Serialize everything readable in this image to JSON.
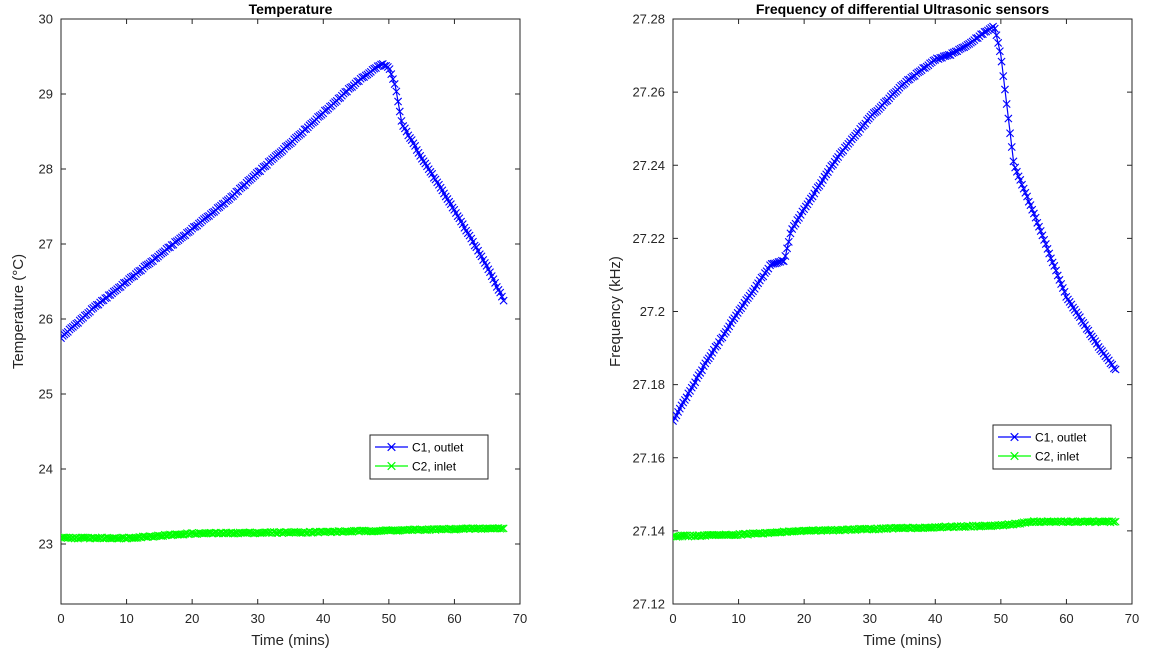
{
  "chart_data": [
    {
      "type": "line",
      "title": "Temperature",
      "xlabel": "Time (mins)",
      "ylabel": "Temperature (°C)",
      "xlim": [
        0,
        70
      ],
      "ylim": [
        22.2,
        30
      ],
      "xticks": [
        "0",
        "10",
        "20",
        "30",
        "40",
        "50",
        "60",
        "70"
      ],
      "yticks": [
        "23",
        "24",
        "25",
        "26",
        "27",
        "28",
        "29",
        "30"
      ],
      "grid": false,
      "legend_position": "lower-right",
      "marker": "x",
      "series": [
        {
          "name": "C1, outlet",
          "color": "#0000ff",
          "x": [
            0,
            5,
            10,
            15,
            20,
            25,
            30,
            35,
            40,
            45,
            48,
            49,
            50,
            51,
            52,
            55,
            60,
            65,
            67.5
          ],
          "y": [
            25.75,
            26.15,
            26.5,
            26.85,
            27.2,
            27.55,
            27.95,
            28.35,
            28.75,
            29.15,
            29.35,
            29.4,
            29.35,
            29.1,
            28.6,
            28.15,
            27.45,
            26.7,
            26.25
          ]
        },
        {
          "name": "C2, inlet",
          "color": "#00ff00",
          "x": [
            0,
            10,
            20,
            30,
            40,
            50,
            60,
            67.5
          ],
          "y": [
            23.08,
            23.08,
            23.14,
            23.15,
            23.16,
            23.18,
            23.2,
            23.21
          ]
        }
      ]
    },
    {
      "type": "line",
      "title": "Frequency of differential Ultrasonic sensors",
      "xlabel": "Time (mins)",
      "ylabel": "Frequency (kHz)",
      "xlim": [
        0,
        70
      ],
      "ylim": [
        27.12,
        27.28
      ],
      "xticks": [
        "0",
        "10",
        "20",
        "30",
        "40",
        "50",
        "60",
        "70"
      ],
      "yticks": [
        "27.12",
        "27.14",
        "27.16",
        "27.18",
        "27.2",
        "27.22",
        "27.24",
        "27.26",
        "27.28"
      ],
      "grid": false,
      "legend_position": "lower-right",
      "marker": "x",
      "series": [
        {
          "name": "C1, outlet",
          "color": "#0000ff",
          "x": [
            0,
            2.5,
            5,
            7.5,
            10,
            15,
            17,
            18,
            20,
            25,
            30,
            35,
            40,
            42,
            45,
            48,
            49,
            50,
            52,
            55,
            58,
            60,
            65,
            67.5
          ],
          "y": [
            27.17,
            27.178,
            27.186,
            27.193,
            27.2,
            27.213,
            27.214,
            27.222,
            27.228,
            27.242,
            27.253,
            27.262,
            27.269,
            27.27,
            27.273,
            27.277,
            27.278,
            27.27,
            27.24,
            27.227,
            27.213,
            27.204,
            27.19,
            27.184
          ]
        },
        {
          "name": "C2, inlet",
          "color": "#00ff00",
          "x": [
            0,
            10,
            20,
            30,
            40,
            50,
            55,
            60,
            67.5
          ],
          "y": [
            27.1385,
            27.139,
            27.14,
            27.1405,
            27.141,
            27.1415,
            27.1425,
            27.1425,
            27.1425
          ]
        }
      ]
    }
  ]
}
